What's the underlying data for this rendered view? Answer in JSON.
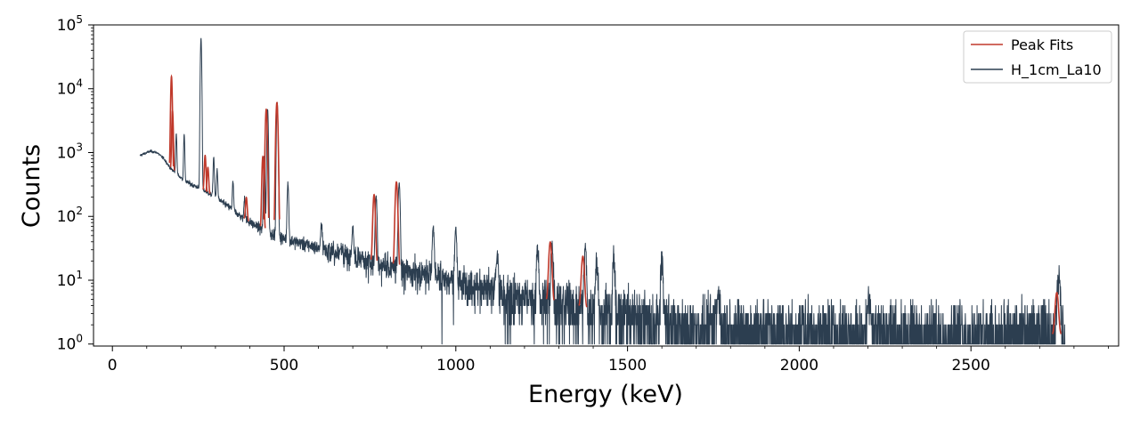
{
  "chart_data": {
    "type": "line",
    "title": "",
    "xlabel": "Energy (keV)",
    "ylabel": "Counts",
    "xlim": [
      -55,
      2930
    ],
    "ylim": [
      0.93,
      100000
    ],
    "y_scale": "log",
    "grid": false,
    "legend_position": "top-right",
    "x_ticks": [
      {
        "value": 0,
        "label": "0"
      },
      {
        "value": 500,
        "label": "500"
      },
      {
        "value": 1000,
        "label": "1000"
      },
      {
        "value": 1500,
        "label": "1500"
      },
      {
        "value": 2000,
        "label": "2000"
      },
      {
        "value": 2500,
        "label": "2500"
      }
    ],
    "y_ticks": [
      {
        "value": 1,
        "base": "10",
        "exp": "0"
      },
      {
        "value": 10,
        "base": "10",
        "exp": "1"
      },
      {
        "value": 100,
        "base": "10",
        "exp": "2"
      },
      {
        "value": 1000,
        "base": "10",
        "exp": "3"
      },
      {
        "value": 10000,
        "base": "10",
        "exp": "4"
      },
      {
        "value": 100000,
        "base": "10",
        "exp": "5"
      }
    ],
    "spectrum": {
      "x_start": 80,
      "x_end": 2775,
      "continuum": [
        [
          80,
          900
        ],
        [
          110,
          1050
        ],
        [
          130,
          1000
        ],
        [
          150,
          800
        ],
        [
          170,
          560
        ],
        [
          190,
          450
        ],
        [
          210,
          360
        ],
        [
          240,
          300
        ],
        [
          270,
          250
        ],
        [
          300,
          200
        ],
        [
          340,
          140
        ],
        [
          380,
          95
        ],
        [
          420,
          70
        ],
        [
          460,
          55
        ],
        [
          500,
          45
        ],
        [
          550,
          38
        ],
        [
          600,
          32
        ],
        [
          650,
          28
        ],
        [
          700,
          24
        ],
        [
          750,
          20
        ],
        [
          800,
          17
        ],
        [
          900,
          13
        ],
        [
          1000,
          10
        ],
        [
          1100,
          7
        ],
        [
          1200,
          5.5
        ],
        [
          1300,
          4.5
        ],
        [
          1400,
          3.5
        ],
        [
          1500,
          2.8
        ],
        [
          1600,
          2.2
        ],
        [
          1800,
          1.8
        ],
        [
          2000,
          1.6
        ],
        [
          2400,
          1.5
        ],
        [
          2775,
          1.4
        ]
      ],
      "peaks": [
        {
          "e": 186,
          "h": 1500
        },
        {
          "e": 209,
          "h": 1550
        },
        {
          "e": 258,
          "h": 62000
        },
        {
          "e": 295,
          "h": 650
        },
        {
          "e": 305,
          "h": 350
        },
        {
          "e": 351,
          "h": 220
        },
        {
          "e": 385,
          "h": 110
        },
        {
          "e": 442,
          "h": 800
        },
        {
          "e": 452,
          "h": 4700
        },
        {
          "e": 480,
          "h": 6000
        },
        {
          "e": 511,
          "h": 300
        },
        {
          "e": 609,
          "h": 50
        },
        {
          "e": 700,
          "h": 45
        },
        {
          "e": 768,
          "h": 190
        },
        {
          "e": 835,
          "h": 320
        },
        {
          "e": 934,
          "h": 60
        },
        {
          "e": 1000,
          "h": 55
        },
        {
          "e": 1120,
          "h": 20
        },
        {
          "e": 1238,
          "h": 25
        },
        {
          "e": 1280,
          "h": 35
        },
        {
          "e": 1377,
          "h": 30
        },
        {
          "e": 1410,
          "h": 18
        },
        {
          "e": 1460,
          "h": 20
        },
        {
          "e": 1600,
          "h": 22
        },
        {
          "e": 1765,
          "h": 5
        },
        {
          "e": 2204,
          "h": 5
        },
        {
          "e": 2755,
          "h": 9
        }
      ]
    },
    "peak_fits": [
      {
        "center": 172,
        "height": 15000,
        "sigma": 1.8
      },
      {
        "center": 175,
        "height": 4000,
        "sigma": 1.8
      },
      {
        "center": 270,
        "height": 650,
        "sigma": 2.0
      },
      {
        "center": 278,
        "height": 350,
        "sigma": 2.0
      },
      {
        "center": 390,
        "height": 110,
        "sigma": 2.2
      },
      {
        "center": 438,
        "height": 800,
        "sigma": 2.2
      },
      {
        "center": 448,
        "height": 4700,
        "sigma": 2.3
      },
      {
        "center": 479,
        "height": 6000,
        "sigma": 2.4
      },
      {
        "center": 762,
        "height": 200,
        "sigma": 2.8
      },
      {
        "center": 827,
        "height": 330,
        "sigma": 2.9
      },
      {
        "center": 1275,
        "height": 35,
        "sigma": 3.5
      },
      {
        "center": 1370,
        "height": 20,
        "sigma": 3.6
      },
      {
        "center": 2750,
        "height": 5,
        "sigma": 4.0
      }
    ],
    "series": [
      {
        "name": "Peak Fits",
        "color": "#c0392b"
      },
      {
        "name": "H_1cm_La10",
        "color": "#2c3e50"
      }
    ]
  }
}
